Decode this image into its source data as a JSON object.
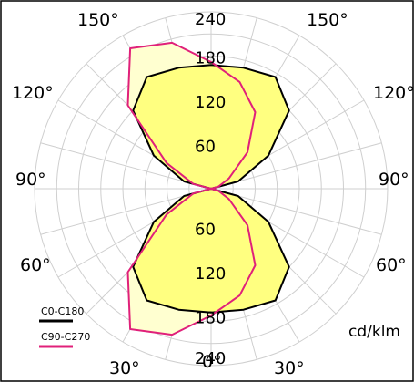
{
  "chart_data": {
    "type": "polar-luminous-intensity",
    "unit": "cd/klm",
    "radial_max": 240,
    "radial_ticks": [
      {
        "value": 60,
        "label": "60"
      },
      {
        "value": 120,
        "label": "120"
      },
      {
        "value": 180,
        "label": "180"
      },
      {
        "value": 240,
        "label": "240"
      }
    ],
    "angle_labels": [
      {
        "angle": 0,
        "label": "0°"
      },
      {
        "angle": 30,
        "label": "30°"
      },
      {
        "angle": -30,
        "label": "30°"
      },
      {
        "angle": 60,
        "label": "60°"
      },
      {
        "angle": -60,
        "label": "60°"
      },
      {
        "angle": 90,
        "label": "90°"
      },
      {
        "angle": -90,
        "label": "90°"
      },
      {
        "angle": 120,
        "label": "120°"
      },
      {
        "angle": -120,
        "label": "120°"
      },
      {
        "angle": 150,
        "label": "150°"
      },
      {
        "angle": -150,
        "label": "150°"
      }
    ],
    "series": [
      {
        "name": "C0-C180",
        "color": "#000000",
        "fill": "#ffff80",
        "points": [
          [
            0,
            168
          ],
          [
            15,
            170
          ],
          [
            30,
            175
          ],
          [
            45,
            150
          ],
          [
            60,
            90
          ],
          [
            75,
            38
          ],
          [
            90,
            0
          ],
          [
            105,
            38
          ],
          [
            120,
            90
          ],
          [
            135,
            150
          ],
          [
            150,
            175
          ],
          [
            165,
            170
          ],
          [
            180,
            168
          ],
          [
            195,
            170
          ],
          [
            210,
            175
          ],
          [
            225,
            150
          ],
          [
            240,
            90
          ],
          [
            255,
            38
          ],
          [
            270,
            0
          ],
          [
            285,
            38
          ],
          [
            300,
            90
          ],
          [
            315,
            150
          ],
          [
            330,
            175
          ],
          [
            345,
            170
          ],
          [
            360,
            168
          ]
        ]
      },
      {
        "name": "C90-C270",
        "color": "#e0207a",
        "fill": "#ffffd0",
        "points": [
          [
            0,
            172
          ],
          [
            15,
            150
          ],
          [
            30,
            120
          ],
          [
            45,
            70
          ],
          [
            60,
            28
          ],
          [
            75,
            10
          ],
          [
            90,
            0
          ],
          [
            105,
            10
          ],
          [
            120,
            28
          ],
          [
            135,
            70
          ],
          [
            150,
            120
          ],
          [
            165,
            150
          ],
          [
            180,
            172
          ],
          [
            195,
            205
          ],
          [
            210,
            220
          ],
          [
            225,
            160
          ],
          [
            240,
            70
          ],
          [
            255,
            25
          ],
          [
            270,
            0
          ],
          [
            285,
            25
          ],
          [
            300,
            70
          ],
          [
            315,
            160
          ],
          [
            330,
            220
          ],
          [
            345,
            205
          ],
          [
            360,
            172
          ]
        ]
      }
    ]
  }
}
